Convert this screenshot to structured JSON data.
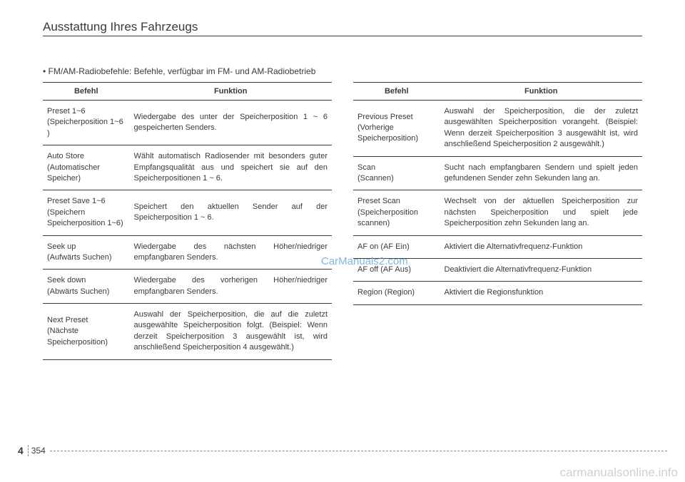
{
  "header": {
    "title": "Ausstattung Ihres Fahrzeugs"
  },
  "subtitle": "• FM/AM-Radiobefehle: Befehle, verfügbar im FM- und AM-Radiobetrieb",
  "table_headers": {
    "befehl": "Befehl",
    "funktion": "Funktion"
  },
  "left_table": [
    {
      "befehl": "Preset 1~6\n(Speicherposition 1~6 )",
      "funktion": "Wiedergabe des unter der Speicherposition 1 ~ 6 gespeicherten Senders."
    },
    {
      "befehl": "Auto Store\n(Automatischer Speicher)",
      "funktion": "Wählt automatisch Radiosender mit besonders guter Empfangsqualität aus und speichert sie auf den Speicherpositionen 1 ~ 6."
    },
    {
      "befehl": "Preset Save 1~6\n(Speichern Speicherposition 1~6)",
      "funktion": "Speichert den aktuellen Sender auf der Speicherposition 1 ~ 6."
    },
    {
      "befehl": "Seek up\n(Aufwärts Suchen)",
      "funktion": "Wiedergabe des nächsten Höher/niedriger empfangbaren Senders."
    },
    {
      "befehl": "Seek down\n(Abwärts Suchen)",
      "funktion": "Wiedergabe des vorherigen Höher/niedriger empfangbaren Senders."
    },
    {
      "befehl": "Next Preset\n(Nächste Speicherposition)",
      "funktion": "Auswahl der Speicherposition, die auf die zuletzt ausgewählte Speicherposition folgt. (Beispiel: Wenn derzeit Speicherposition 3 ausgewählt ist, wird anschließend Speicherposition 4 ausgewählt.)"
    }
  ],
  "right_table": [
    {
      "befehl": "Previous Preset\n(Vorherige Speicherposition)",
      "funktion": "Auswahl der Speicherposition, die der zuletzt ausgewählten Speicherposition vorangeht. (Beispiel: Wenn derzeit Speicherposition 3 ausgewählt ist, wird anschließend Speicherposition 2 ausgewählt.)"
    },
    {
      "befehl": "Scan\n(Scannen)",
      "funktion": "Sucht nach empfangbaren Sendern und spielt jeden gefundenen Sender zehn Sekunden lang an."
    },
    {
      "befehl": "Preset Scan\n(Speicherposition scannen)",
      "funktion": "Wechselt von der aktuellen Speicherposition zur nächsten Speicherposition und spielt jede Speicherposition zehn Sekunden lang an."
    },
    {
      "befehl": "AF on (AF Ein)",
      "funktion": "Aktiviert die Alternativfrequenz-Funktion"
    },
    {
      "befehl": "AF off (AF Aus)",
      "funktion": "Deaktiviert die Alternativfrequenz-Funktion"
    },
    {
      "befehl": "Region (Region)",
      "funktion": "Aktiviert die Regionsfunktion"
    }
  ],
  "watermark": "CarManuals2.com",
  "footer": {
    "page_section": "4",
    "page_num": "354"
  },
  "bottom_watermark": "carmanualsonline.info"
}
